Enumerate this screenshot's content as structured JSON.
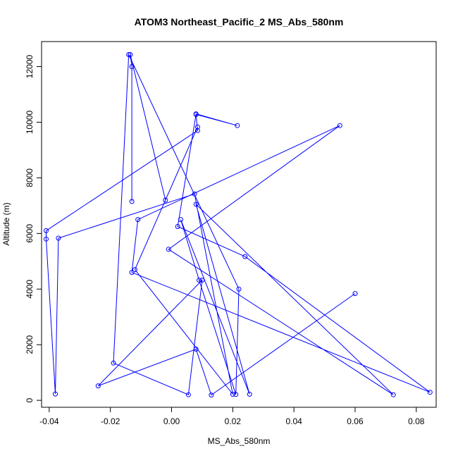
{
  "chart_data": {
    "type": "line",
    "title": "ATOM3 Northeast_Pacific_2 MS_Abs_580nm",
    "xlabel": "MS_Abs_580nm",
    "ylabel": "Altitude (m)",
    "xlim": [
      -0.0425,
      0.0865
    ],
    "ylim": [
      -250,
      12900
    ],
    "xticks": [
      -0.04,
      -0.02,
      0.0,
      0.02,
      0.04,
      0.06,
      0.08
    ],
    "xtick_labels": [
      "-0.04",
      "-0.02",
      "0.00",
      "0.02",
      "0.04",
      "0.06",
      "0.08"
    ],
    "yticks": [
      0,
      2000,
      4000,
      6000,
      8000,
      10000,
      12000
    ],
    "ytick_labels": [
      "0",
      "2000",
      "4000",
      "6000",
      "8000",
      "10000",
      "12000"
    ],
    "grid": false,
    "legend": "none",
    "series": [
      {
        "color": "#0000ff",
        "marker": "open-circle",
        "x": [
          -0.013,
          -0.013,
          -0.0135,
          -0.002,
          0.0085,
          -0.012,
          0.02,
          0.0075,
          -0.037,
          -0.038,
          -0.041,
          -0.041,
          0.0085,
          0.008,
          0.0215,
          0.008,
          0.002,
          0.024,
          0.0845,
          -0.013,
          -0.011,
          0.055,
          -0.001,
          0.0725,
          0.008,
          0.0255,
          0.003,
          0.009,
          0.021,
          0.022,
          -0.014,
          -0.019,
          0.0055,
          0.01,
          -0.024,
          0.008,
          0.013,
          0.06
        ],
        "y": [
          7150,
          12000,
          12430,
          7200,
          9830,
          4700,
          220,
          7420,
          5830,
          230,
          5800,
          6100,
          9700,
          10300,
          9880,
          10280,
          6250,
          5170,
          290,
          4600,
          6500,
          9880,
          5430,
          200,
          7050,
          220,
          6500,
          4320,
          210,
          4000,
          12430,
          1340,
          200,
          4320,
          520,
          1840,
          190,
          3840
        ]
      }
    ]
  }
}
